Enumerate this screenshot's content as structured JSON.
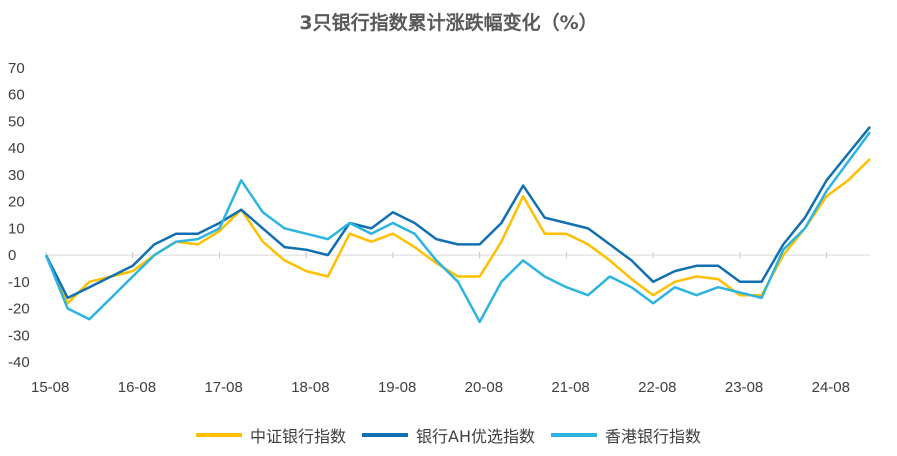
{
  "chart_data": {
    "type": "line",
    "title": "3只银行指数累计涨跌幅变化（%）",
    "xlabel": "",
    "ylabel": "",
    "ylim": [
      -40,
      70
    ],
    "yticks": [
      "70",
      "60",
      "50",
      "40",
      "30",
      "20",
      "10",
      "0",
      "-10",
      "-20",
      "-30",
      "-40"
    ],
    "xticks": [
      "15-08",
      "16-08",
      "17-08",
      "18-08",
      "19-08",
      "20-08",
      "21-08",
      "22-08",
      "23-08",
      "24-08"
    ],
    "x": [
      "15-08",
      "15-11",
      "16-02",
      "16-05",
      "16-08",
      "16-11",
      "17-02",
      "17-05",
      "17-08",
      "17-11",
      "18-02",
      "18-05",
      "18-08",
      "18-11",
      "19-02",
      "19-05",
      "19-08",
      "19-11",
      "20-02",
      "20-05",
      "20-08",
      "20-11",
      "21-02",
      "21-05",
      "21-08",
      "21-11",
      "22-02",
      "22-05",
      "22-08",
      "22-11",
      "23-02",
      "23-05",
      "23-08",
      "23-11",
      "24-02",
      "24-05",
      "24-08",
      "24-11",
      "25-02"
    ],
    "series": [
      {
        "name": "中证银行指数",
        "color": "#FFC000",
        "values": [
          0,
          -18,
          -10,
          -8,
          -6,
          0,
          5,
          4,
          9,
          17,
          5,
          -2,
          -6,
          -8,
          8,
          5,
          8,
          3,
          -3,
          -8,
          -8,
          5,
          22,
          8,
          8,
          4,
          -2,
          -9,
          -15,
          -10,
          -8,
          -9,
          -15,
          -15,
          0,
          10,
          22,
          28,
          36
        ]
      },
      {
        "name": "银行AH优选指数",
        "color": "#1270B0",
        "values": [
          0,
          -16,
          -12,
          -8,
          -4,
          4,
          8,
          8,
          12,
          17,
          10,
          3,
          2,
          0,
          12,
          10,
          16,
          12,
          6,
          4,
          4,
          12,
          26,
          14,
          12,
          10,
          4,
          -2,
          -10,
          -6,
          -4,
          -4,
          -10,
          -10,
          4,
          14,
          28,
          38,
          48
        ]
      },
      {
        "name": "香港银行指数",
        "color": "#2EB4E0",
        "values": [
          0,
          -20,
          -24,
          -16,
          -8,
          0,
          5,
          6,
          10,
          28,
          16,
          10,
          8,
          6,
          12,
          8,
          12,
          8,
          -2,
          -10,
          -25,
          -10,
          -2,
          -8,
          -12,
          -15,
          -8,
          -12,
          -18,
          -12,
          -15,
          -12,
          -14,
          -16,
          2,
          10,
          24,
          35,
          46
        ]
      }
    ]
  }
}
